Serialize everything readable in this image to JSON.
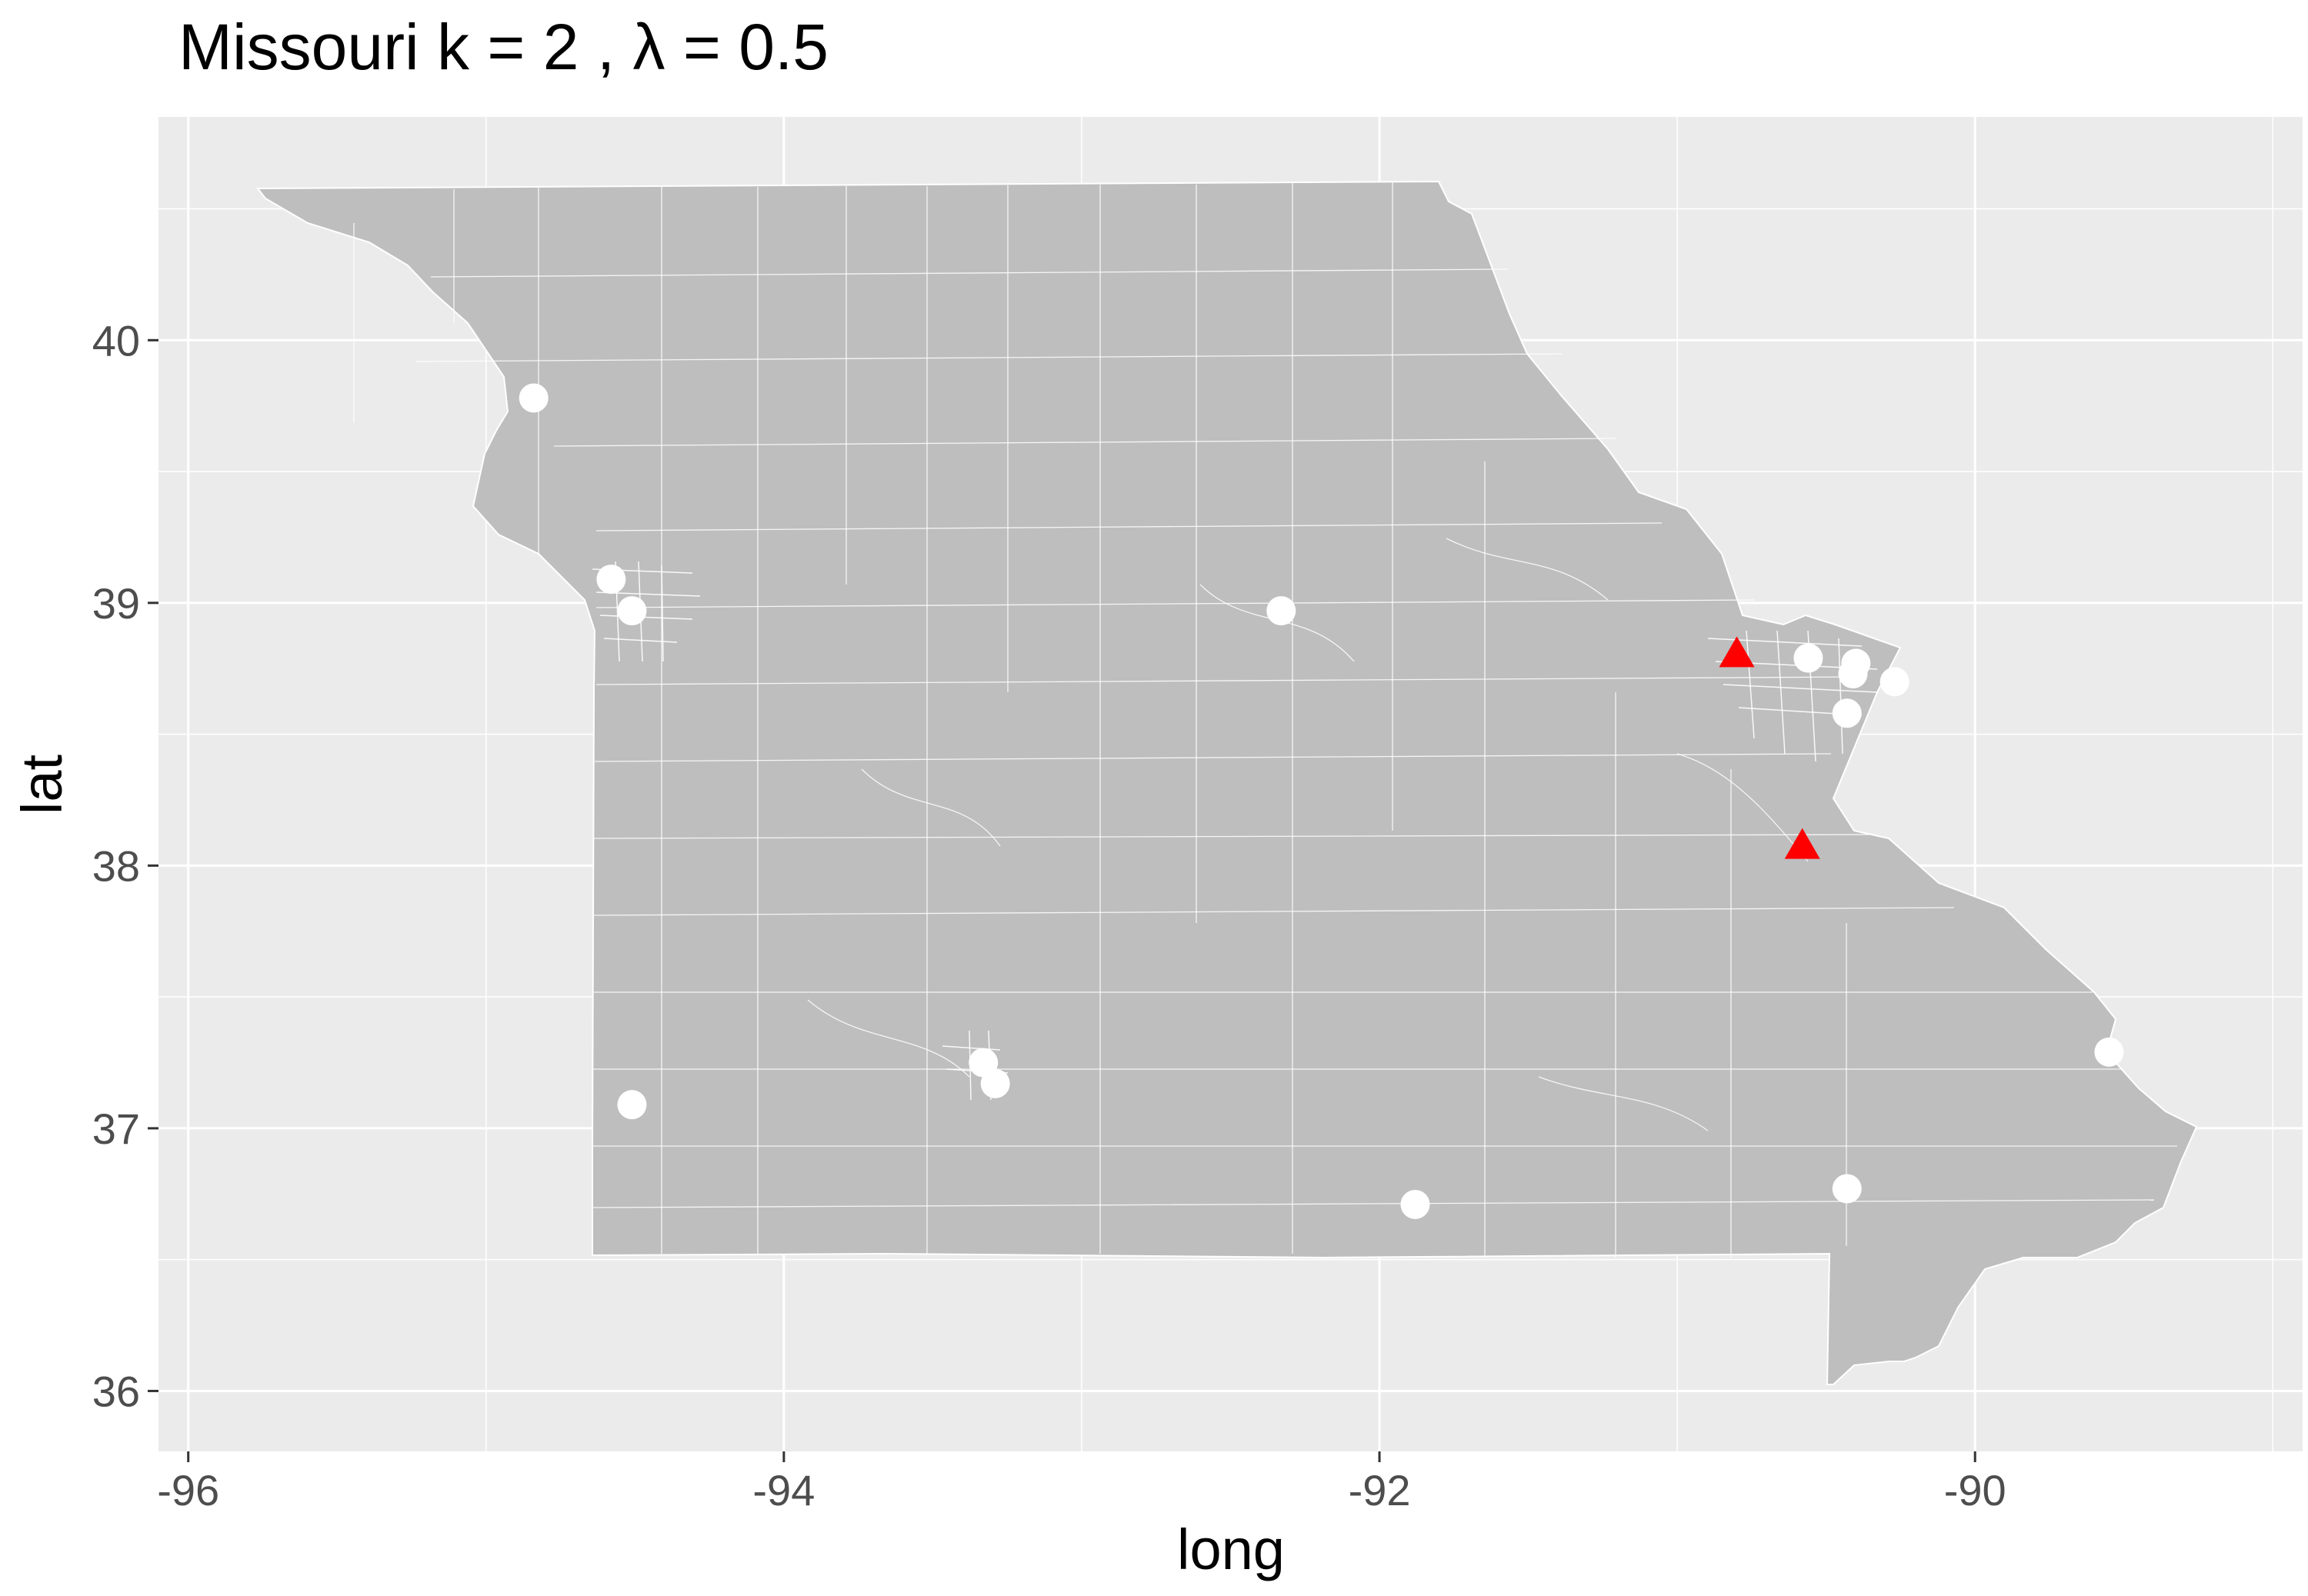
{
  "chart_data": {
    "type": "scatter",
    "title": "Missouri  k =  2 ,  λ  =  0.5",
    "xlabel": "long",
    "ylabel": "lat",
    "xlim": [
      -96.1,
      -88.9
    ],
    "ylim": [
      35.77,
      40.85
    ],
    "x_ticks": [
      -96,
      -94,
      -92,
      -90
    ],
    "y_ticks": [
      36,
      37,
      38,
      39,
      40
    ],
    "x_tick_labels": [
      "-96",
      "-94",
      "-92",
      "-90"
    ],
    "y_tick_labels": [
      "36",
      "37",
      "38",
      "39",
      "40"
    ],
    "grid": true,
    "legend": "none",
    "colors": {
      "panel_background": "#ebebeb",
      "gridline": "#ffffff",
      "state_fill": "#bebebe",
      "boundary": "#ffffff",
      "point_circle": "#ffffff",
      "point_triangle": "#ff0000"
    },
    "series": [
      {
        "marker": "circle",
        "points": [
          {
            "x": -94.84,
            "y": 39.78
          },
          {
            "x": -94.58,
            "y": 39.09
          },
          {
            "x": -94.51,
            "y": 38.97
          },
          {
            "x": -92.33,
            "y": 38.97
          },
          {
            "x": -90.56,
            "y": 38.79
          },
          {
            "x": -90.4,
            "y": 38.77
          },
          {
            "x": -90.41,
            "y": 38.73
          },
          {
            "x": -90.27,
            "y": 38.7
          },
          {
            "x": -90.43,
            "y": 38.58
          },
          {
            "x": -93.33,
            "y": 37.25
          },
          {
            "x": -93.29,
            "y": 37.17
          },
          {
            "x": -94.51,
            "y": 37.09
          },
          {
            "x": -89.55,
            "y": 37.29
          },
          {
            "x": -90.43,
            "y": 36.77
          },
          {
            "x": -91.88,
            "y": 36.71
          }
        ]
      },
      {
        "marker": "triangle",
        "points": [
          {
            "x": -90.8,
            "y": 38.8
          },
          {
            "x": -90.58,
            "y": 38.07
          }
        ]
      }
    ]
  }
}
